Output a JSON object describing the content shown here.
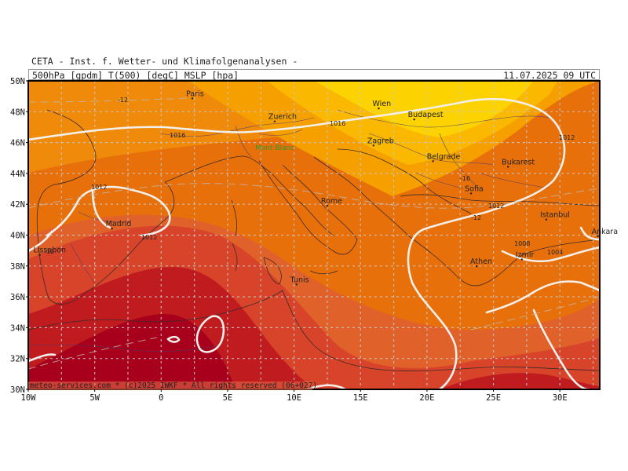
{
  "header": {
    "organization": "CETA - Inst. f. Wetter- und Klimafolgenanalysen -",
    "product": "500hPa [gpdm] T(500) [degC] MSLP [hpa]",
    "valid_time": "11.07.2025 09 UTC"
  },
  "map": {
    "lon_range": [
      -10,
      33
    ],
    "lat_range": [
      30,
      50
    ],
    "lat_ticks": [
      "30N",
      "32N",
      "34N",
      "36N",
      "38N",
      "40N",
      "42N",
      "44N",
      "46N",
      "48N",
      "50N"
    ],
    "lon_ticks": [
      "10W",
      "5W",
      "0",
      "5E",
      "10E",
      "15E",
      "20E",
      "25E",
      "30E"
    ],
    "temperature_band_colors": [
      "#a8001c",
      "#c01c20",
      "#d8442a",
      "#e0622a",
      "#e8700a",
      "#f08a0a",
      "#f6a000",
      "#fab800",
      "#fcd200"
    ],
    "cities": [
      {
        "name": "Paris",
        "lon": 2.35,
        "lat": 48.86
      },
      {
        "name": "Zuerich",
        "lon": 8.54,
        "lat": 47.37
      },
      {
        "name": "Wien",
        "lon": 16.37,
        "lat": 48.21
      },
      {
        "name": "Budapest",
        "lon": 19.04,
        "lat": 47.5
      },
      {
        "name": "Zagreb",
        "lon": 15.98,
        "lat": 45.81
      },
      {
        "name": "Belgrade",
        "lon": 20.46,
        "lat": 44.79
      },
      {
        "name": "Bukarest",
        "lon": 26.1,
        "lat": 44.43
      },
      {
        "name": "Sofia",
        "lon": 23.32,
        "lat": 42.7
      },
      {
        "name": "Rome",
        "lon": 12.5,
        "lat": 41.9
      },
      {
        "name": "Madrid",
        "lon": -3.7,
        "lat": 40.42
      },
      {
        "name": "Lissabon",
        "lon": -9.14,
        "lat": 38.72
      },
      {
        "name": "Istanbul",
        "lon": 28.98,
        "lat": 41.01
      },
      {
        "name": "Ankara",
        "lon": 32.86,
        "lat": 39.93
      },
      {
        "name": "Athen",
        "lon": 23.73,
        "lat": 37.98
      },
      {
        "name": "Izmir",
        "lon": 27.14,
        "lat": 38.42
      },
      {
        "name": "Tunis",
        "lon": 10.18,
        "lat": 36.8
      }
    ],
    "mountain_label": "Mont Blanc",
    "isobar_labels": [
      "1016",
      "1016",
      "1012",
      "1012",
      "1012",
      "1012",
      "1008",
      "1004",
      "1012"
    ],
    "temperature_labels": [
      "-12",
      "-12",
      "-16",
      "-12"
    ],
    "copyright": "meteo-services.com * (c)2025 IWKF * All rights reserved (06+027)"
  }
}
